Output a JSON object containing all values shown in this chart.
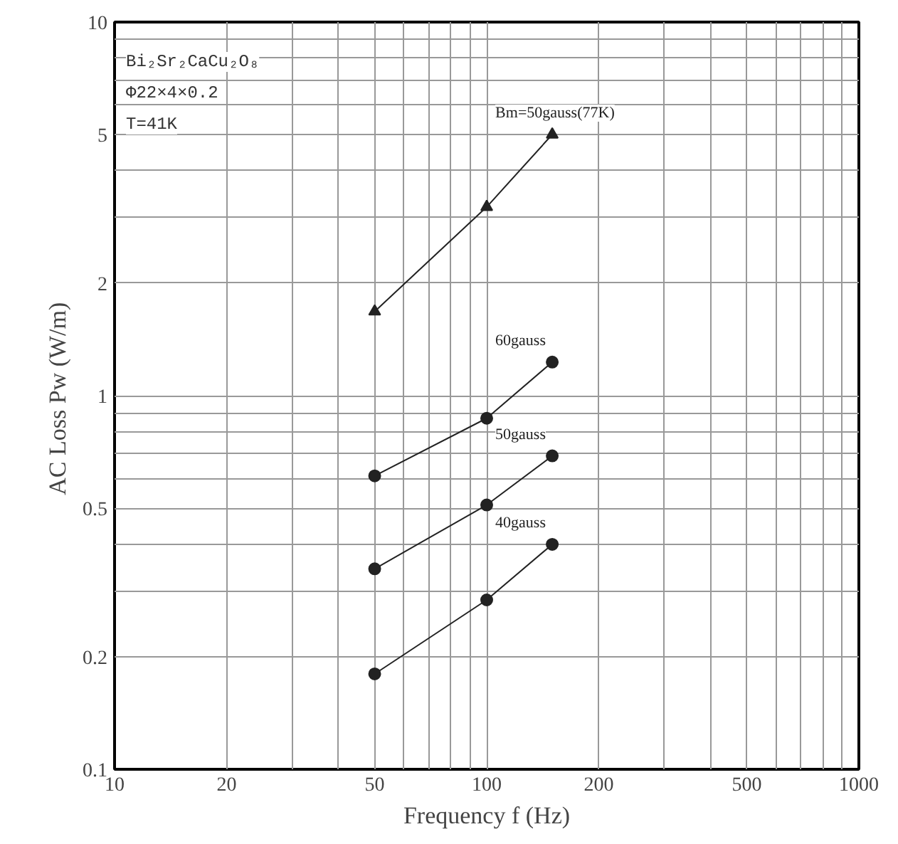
{
  "chart_data": {
    "type": "line",
    "xlabel": "Frequency f (Hz)",
    "ylabel": "AC Loss  Pw (W/m)",
    "log": "xy",
    "grid": true,
    "xlim": [
      10,
      1000
    ],
    "ylim": [
      0.1,
      10
    ],
    "xticks": [
      10,
      20,
      {
        "value": 30,
        "label": null
      },
      {
        "value": 40,
        "label": null
      },
      50,
      {
        "value": 60,
        "label": null
      },
      {
        "value": 70,
        "label": null
      },
      {
        "value": 80,
        "label": null
      },
      {
        "value": 90,
        "label": null
      },
      100,
      200,
      {
        "value": 300,
        "label": null
      },
      {
        "value": 400,
        "label": null
      },
      500,
      {
        "value": 600,
        "label": null
      },
      {
        "value": 700,
        "label": null
      },
      {
        "value": 800,
        "label": null
      },
      {
        "value": 900,
        "label": null
      },
      1000
    ],
    "yticks": [
      0.1,
      0.2,
      {
        "value": 0.3,
        "label": null
      },
      {
        "value": 0.4,
        "label": null
      },
      0.5,
      {
        "value": 0.6,
        "label": null
      },
      {
        "value": 0.7,
        "label": null
      },
      {
        "value": 0.8,
        "label": null
      },
      {
        "value": 0.9,
        "label": null
      },
      1,
      2,
      {
        "value": 3,
        "label": null
      },
      {
        "value": 4,
        "label": null
      },
      5,
      {
        "value": 6,
        "label": null
      },
      {
        "value": 7,
        "label": null
      },
      {
        "value": 8,
        "label": null
      },
      {
        "value": 9,
        "label": null
      },
      10
    ],
    "x": [
      50,
      100,
      150
    ],
    "series": [
      {
        "name": "Bm=50gauss(77K)",
        "color": "#222222",
        "marker": "triangle",
        "values": [
          1.68,
          3.2,
          5.0
        ]
      },
      {
        "name": "60gauss",
        "color": "#222222",
        "marker": "circle",
        "values": [
          0.61,
          0.87,
          1.23
        ]
      },
      {
        "name": "50gauss",
        "color": "#222222",
        "marker": "circle",
        "values": [
          0.344,
          0.51,
          0.69
        ]
      },
      {
        "name": "40gauss",
        "color": "#222222",
        "marker": "circle",
        "values": [
          0.18,
          0.284,
          0.4
        ]
      }
    ],
    "annotations": [
      "Bi₂Sr₂CaCu₂O₈",
      "Φ22×4×0.2",
      "T=41K"
    ]
  }
}
